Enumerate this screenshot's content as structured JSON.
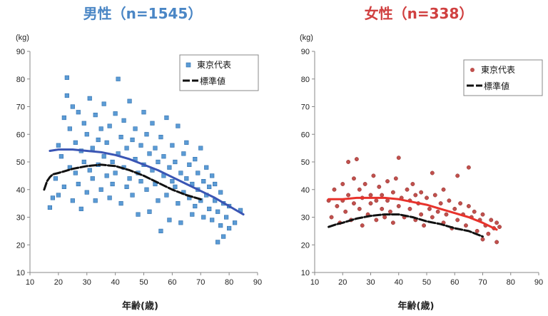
{
  "chart_data": [
    {
      "type": "scatter",
      "title": "男性（n=1545）",
      "title_color": "#4a86c5",
      "unit_label": "(kg)",
      "xlabel": "年齢(歳)",
      "ylabel": "",
      "xlim": [
        10,
        90
      ],
      "ylim": [
        10,
        90
      ],
      "xticks": [
        10,
        20,
        30,
        40,
        50,
        60,
        70,
        80,
        90
      ],
      "yticks": [
        10,
        20,
        30,
        40,
        50,
        60,
        70,
        80,
        90
      ],
      "grid": false,
      "legend_position": "top-right",
      "series": [
        {
          "name": "東京代表",
          "kind": "points",
          "marker": "square",
          "color": "#5b9bd5",
          "points": [
            [
              17,
              33.5
            ],
            [
              18,
              37
            ],
            [
              19,
              44
            ],
            [
              20,
              56
            ],
            [
              20,
              38
            ],
            [
              21,
              52
            ],
            [
              22,
              66
            ],
            [
              22,
              41
            ],
            [
              23,
              80.5
            ],
            [
              23,
              74
            ],
            [
              24,
              62
            ],
            [
              24,
              48
            ],
            [
              25,
              70
            ],
            [
              25,
              36
            ],
            [
              26,
              57
            ],
            [
              26,
              46
            ],
            [
              27,
              68
            ],
            [
              27,
              42
            ],
            [
              28,
              54
            ],
            [
              28,
              33
            ],
            [
              29,
              64
            ],
            [
              29,
              50
            ],
            [
              30,
              60
            ],
            [
              30,
              39
            ],
            [
              31,
              73
            ],
            [
              31,
              47
            ],
            [
              32,
              55
            ],
            [
              32,
              44
            ],
            [
              33,
              67
            ],
            [
              33,
              36
            ],
            [
              34,
              58
            ],
            [
              34,
              49
            ],
            [
              35,
              62
            ],
            [
              35,
              40
            ],
            [
              36,
              52
            ],
            [
              36,
              71
            ],
            [
              37,
              45
            ],
            [
              37,
              57
            ],
            [
              38,
              63
            ],
            [
              38,
              37
            ],
            [
              39,
              50
            ],
            [
              39,
              42
            ],
            [
              40,
              67.5
            ],
            [
              40,
              46
            ],
            [
              41,
              80
            ],
            [
              41,
              53
            ],
            [
              42,
              59
            ],
            [
              42,
              35
            ],
            [
              43,
              48
            ],
            [
              43,
              65
            ],
            [
              44,
              55
            ],
            [
              44,
              41
            ],
            [
              45,
              72
            ],
            [
              45,
              44
            ],
            [
              46,
              58
            ],
            [
              46,
              38
            ],
            [
              47,
              51
            ],
            [
              47,
              62
            ],
            [
              48,
              46
            ],
            [
              48,
              31
            ],
            [
              49,
              56
            ],
            [
              49,
              43
            ],
            [
              50,
              68
            ],
            [
              50,
              49
            ],
            [
              51,
              40
            ],
            [
              51,
              60
            ],
            [
              52,
              53
            ],
            [
              52,
              32
            ],
            [
              53,
              47
            ],
            [
              53,
              64
            ],
            [
              54,
              42
            ],
            [
              54,
              55
            ],
            [
              55,
              50
            ],
            [
              55,
              36
            ],
            [
              56,
              59
            ],
            [
              56,
              25
            ],
            [
              57,
              45
            ],
            [
              57,
              52
            ],
            [
              58,
              66
            ],
            [
              58,
              38
            ],
            [
              59,
              48
            ],
            [
              59,
              29
            ],
            [
              60,
              56
            ],
            [
              60,
              43
            ],
            [
              61,
              41
            ],
            [
              61,
              50
            ],
            [
              62,
              63
            ],
            [
              62,
              35
            ],
            [
              63,
              46
            ],
            [
              63,
              28
            ],
            [
              64,
              53
            ],
            [
              64,
              39
            ],
            [
              65,
              44
            ],
            [
              65,
              57
            ],
            [
              66,
              37
            ],
            [
              66,
              49
            ],
            [
              67,
              42
            ],
            [
              67,
              31
            ],
            [
              68,
              51
            ],
            [
              68,
              34
            ],
            [
              69,
              40
            ],
            [
              69,
              46
            ],
            [
              70,
              36
            ],
            [
              70,
              55
            ],
            [
              71,
              43
            ],
            [
              71,
              30
            ],
            [
              72,
              38
            ],
            [
              72,
              48
            ],
            [
              73,
              33
            ],
            [
              73,
              41
            ],
            [
              74,
              45
            ],
            [
              74,
              29
            ],
            [
              75,
              36
            ],
            [
              75,
              42
            ],
            [
              76,
              21
            ],
            [
              76,
              32
            ],
            [
              77,
              39
            ],
            [
              77,
              27
            ],
            [
              78,
              35
            ],
            [
              78,
              23
            ],
            [
              79,
              30
            ],
            [
              80,
              34
            ],
            [
              80,
              26
            ],
            [
              82,
              28
            ],
            [
              84,
              32.5
            ]
          ]
        },
        {
          "name": "",
          "kind": "line",
          "color": "#3a55b4",
          "width": 3,
          "points": [
            [
              17,
              54
            ],
            [
              20,
              54.5
            ],
            [
              25,
              54.5
            ],
            [
              30,
              54
            ],
            [
              35,
              53.5
            ],
            [
              40,
              52.5
            ],
            [
              45,
              51
            ],
            [
              50,
              49
            ],
            [
              55,
              47
            ],
            [
              60,
              44.5
            ],
            [
              65,
              42
            ],
            [
              70,
              39.5
            ],
            [
              75,
              37
            ],
            [
              80,
              34
            ],
            [
              85,
              31
            ]
          ]
        },
        {
          "name": "標準値",
          "kind": "line",
          "color": "#111111",
          "width": 3,
          "dash": true,
          "points": [
            [
              15,
              40
            ],
            [
              16,
              43
            ],
            [
              17,
              44.5
            ],
            [
              18,
              45.5
            ],
            [
              20,
              46
            ],
            [
              25,
              47.5
            ],
            [
              30,
              48.5
            ],
            [
              35,
              49
            ],
            [
              40,
              48.5
            ],
            [
              45,
              47
            ],
            [
              50,
              45
            ],
            [
              55,
              42.5
            ],
            [
              60,
              40
            ],
            [
              65,
              38
            ],
            [
              70,
              36.5
            ]
          ]
        }
      ]
    },
    {
      "type": "scatter",
      "title": "女性（n=338）",
      "title_color": "#d04040",
      "unit_label": "(kg)",
      "xlabel": "年齢(歳)",
      "ylabel": "",
      "xlim": [
        10,
        90
      ],
      "ylim": [
        10,
        90
      ],
      "xticks": [
        10,
        20,
        30,
        40,
        50,
        60,
        70,
        80,
        90
      ],
      "yticks": [
        10,
        20,
        30,
        40,
        50,
        60,
        70,
        80,
        90
      ],
      "grid": false,
      "legend_position": "top-right",
      "series": [
        {
          "name": "東京代表",
          "kind": "points",
          "marker": "circle",
          "color": "#c0504d",
          "points": [
            [
              15,
              36
            ],
            [
              16,
              30
            ],
            [
              17,
              40
            ],
            [
              18,
              34
            ],
            [
              19,
              28
            ],
            [
              20,
              42
            ],
            [
              20,
              36
            ],
            [
              21,
              32
            ],
            [
              22,
              50
            ],
            [
              22,
              38
            ],
            [
              23,
              29
            ],
            [
              24,
              44
            ],
            [
              24,
              35
            ],
            [
              25,
              51
            ],
            [
              26,
              33
            ],
            [
              26,
              40
            ],
            [
              27,
              37
            ],
            [
              27,
              27
            ],
            [
              28,
              42
            ],
            [
              29,
              31
            ],
            [
              30,
              38
            ],
            [
              30,
              35
            ],
            [
              31,
              45
            ],
            [
              32,
              29
            ],
            [
              32,
              36
            ],
            [
              33,
              41
            ],
            [
              34,
              33
            ],
            [
              34,
              38
            ],
            [
              35,
              30
            ],
            [
              36,
              43
            ],
            [
              36,
              36
            ],
            [
              37,
              32
            ],
            [
              38,
              39
            ],
            [
              38,
              28
            ],
            [
              39,
              44
            ],
            [
              40,
              51.5
            ],
            [
              40,
              34
            ],
            [
              41,
              37
            ],
            [
              42,
              30
            ],
            [
              43,
              40
            ],
            [
              44,
              33
            ],
            [
              44,
              36
            ],
            [
              45,
              42
            ],
            [
              46,
              29
            ],
            [
              46,
              38
            ],
            [
              47,
              35
            ],
            [
              48,
              31
            ],
            [
              48,
              39
            ],
            [
              49,
              27
            ],
            [
              50,
              37
            ],
            [
              51,
              33
            ],
            [
              52,
              46
            ],
            [
              52,
              30
            ],
            [
              53,
              38
            ],
            [
              54,
              32
            ],
            [
              55,
              35
            ],
            [
              56,
              28
            ],
            [
              56,
              40
            ],
            [
              57,
              31
            ],
            [
              58,
              36
            ],
            [
              59,
              26
            ],
            [
              60,
              33
            ],
            [
              61,
              45
            ],
            [
              61,
              29
            ],
            [
              62,
              35
            ],
            [
              63,
              31
            ],
            [
              64,
              27
            ],
            [
              65,
              34
            ],
            [
              65,
              48
            ],
            [
              66,
              30
            ],
            [
              67,
              32
            ],
            [
              68,
              25
            ],
            [
              69,
              29
            ],
            [
              70,
              22
            ],
            [
              70,
              31
            ],
            [
              71,
              27
            ],
            [
              72,
              24
            ],
            [
              73,
              29
            ],
            [
              74,
              26
            ],
            [
              75,
              21
            ],
            [
              75,
              28
            ],
            [
              76,
              26.5
            ]
          ]
        },
        {
          "name": "",
          "kind": "line",
          "color": "#e8322b",
          "width": 3,
          "points": [
            [
              15,
              36.5
            ],
            [
              20,
              36.5
            ],
            [
              25,
              37
            ],
            [
              30,
              37
            ],
            [
              35,
              37
            ],
            [
              40,
              36.5
            ],
            [
              45,
              35.5
            ],
            [
              50,
              34.5
            ],
            [
              55,
              33
            ],
            [
              60,
              31.5
            ],
            [
              65,
              30
            ],
            [
              70,
              28
            ],
            [
              75,
              25.5
            ]
          ]
        },
        {
          "name": "標準値",
          "kind": "line",
          "color": "#111111",
          "width": 3,
          "dash": true,
          "points": [
            [
              15,
              26.5
            ],
            [
              18,
              27.5
            ],
            [
              20,
              28
            ],
            [
              25,
              29.5
            ],
            [
              30,
              30.5
            ],
            [
              35,
              31
            ],
            [
              40,
              31
            ],
            [
              45,
              30
            ],
            [
              50,
              28.5
            ],
            [
              55,
              27.5
            ],
            [
              60,
              26
            ],
            [
              65,
              25
            ],
            [
              70,
              23
            ]
          ]
        }
      ]
    }
  ]
}
